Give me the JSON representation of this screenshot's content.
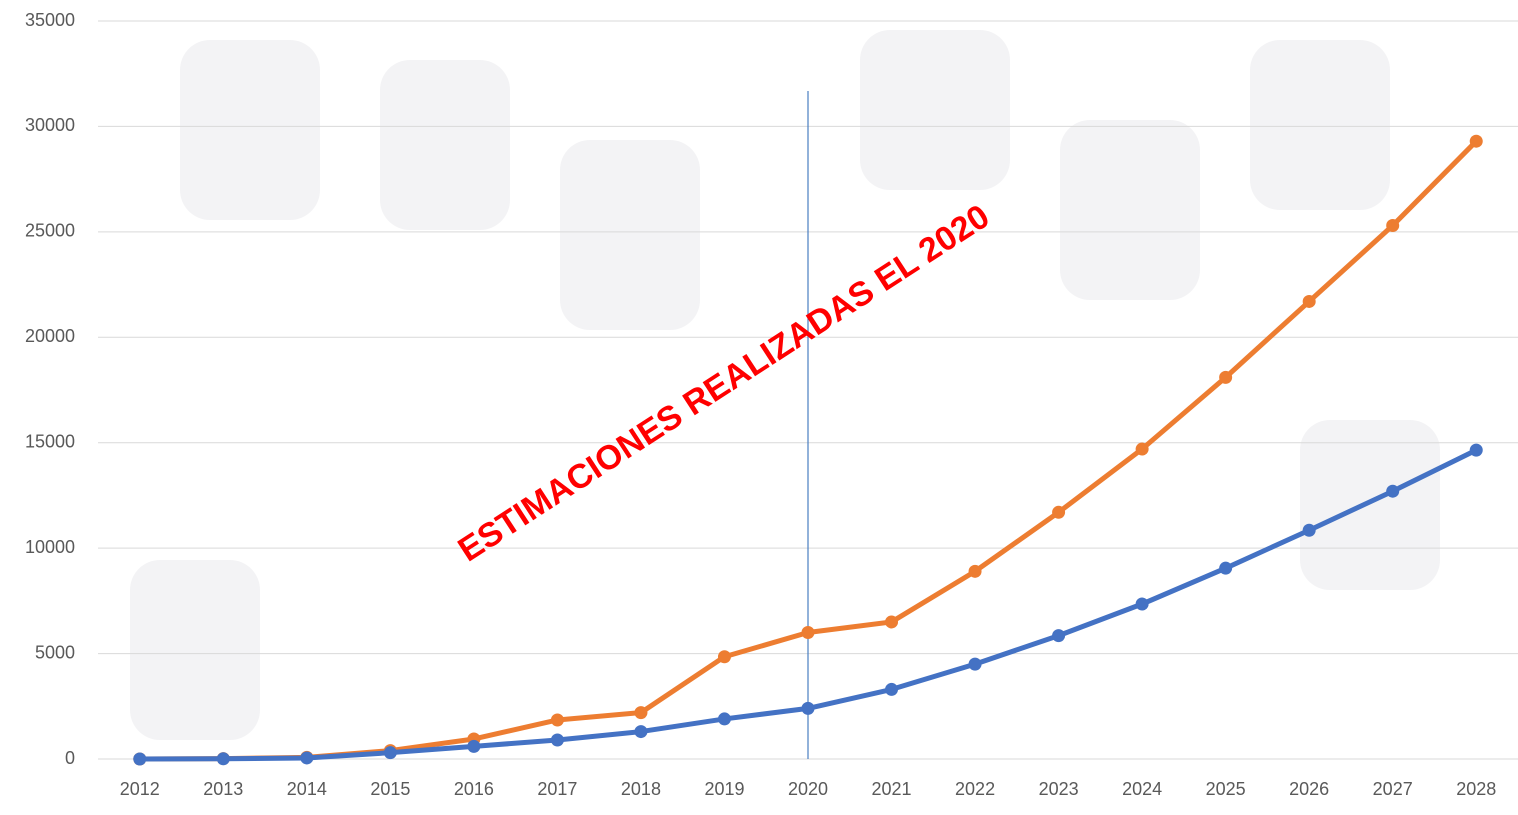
{
  "chart_data": {
    "type": "line",
    "annotation": "ESTIMACIONES REALIZADAS EL 2020",
    "vline": "2020",
    "categories": [
      "2012",
      "2013",
      "2014",
      "2015",
      "2016",
      "2017",
      "2018",
      "2019",
      "2020",
      "2021",
      "2022",
      "2023",
      "2024",
      "2025",
      "2026",
      "2027",
      "2028"
    ],
    "series": [
      {
        "color": "#ed7d31",
        "values": [
          0,
          20,
          80,
          400,
          950,
          1850,
          2200,
          4850,
          6000,
          6500,
          8900,
          11700,
          14700,
          18100,
          21700,
          25300,
          29300
        ]
      },
      {
        "color": "#4472c4",
        "values": [
          0,
          10,
          50,
          300,
          600,
          900,
          1300,
          1900,
          2400,
          3300,
          4500,
          5850,
          7350,
          9050,
          10850,
          12700,
          14650
        ]
      }
    ],
    "ylim": [
      0,
      35000
    ],
    "yticks": [
      0,
      5000,
      10000,
      15000,
      20000,
      25000,
      30000,
      35000
    ],
    "grid": true
  }
}
